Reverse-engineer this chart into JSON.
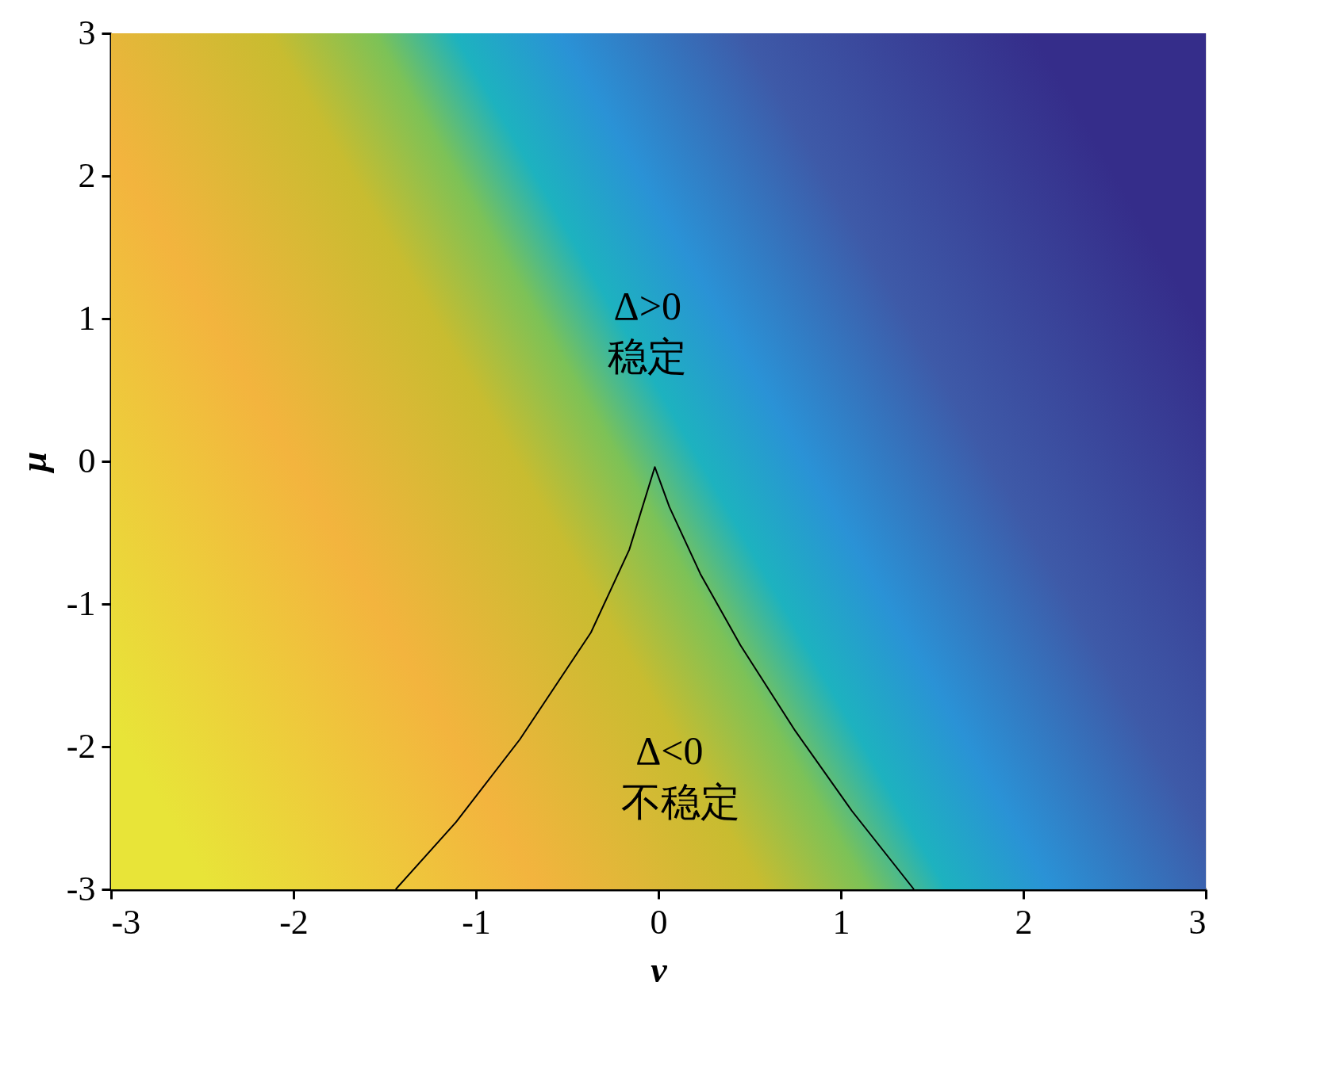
{
  "chart_data": {
    "type": "line",
    "xlabel": "v",
    "ylabel": "μ",
    "xlim": [
      -3,
      3
    ],
    "ylim": [
      -3,
      3
    ],
    "xticks": [
      -3,
      -2,
      -1,
      0,
      1,
      2,
      3
    ],
    "yticks": [
      -3,
      -2,
      -1,
      0,
      1,
      2,
      3
    ],
    "grid": false,
    "marker": "none",
    "line_style": "solid",
    "series": [
      {
        "color": "#000000",
        "x": [
          -1.44,
          -1.11,
          -0.76,
          -0.37,
          -0.16,
          -0.02,
          0.06,
          0.23,
          0.45,
          0.75,
          1.06,
          1.4
        ],
        "values": [
          -3,
          -2.53,
          -1.95,
          -1.2,
          -0.62,
          -0.04,
          -0.32,
          -0.79,
          -1.29,
          -1.89,
          -2.45,
          -3
        ]
      }
    ],
    "annotations": [
      "Δ>0",
      "稳定",
      "Δ<0",
      "不稳定"
    ]
  }
}
